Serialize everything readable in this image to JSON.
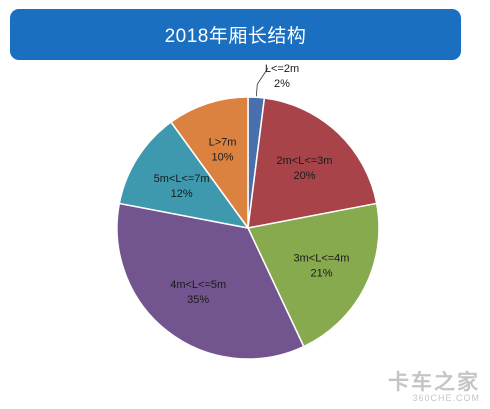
{
  "header": {
    "title": "2018年厢长结构"
  },
  "chart_data": {
    "type": "pie",
    "title": "2018年厢长结构",
    "slices": [
      {
        "label": "L<=2m",
        "pct_label": "2%",
        "value": 2,
        "color": "#4a6fad"
      },
      {
        "label": "2m<L<=3m",
        "pct_label": "20%",
        "value": 20,
        "color": "#a8434a"
      },
      {
        "label": "3m<L<=4m",
        "pct_label": "21%",
        "value": 21,
        "color": "#88aa4e"
      },
      {
        "label": "4m<L<=5m",
        "pct_label": "35%",
        "value": 35,
        "color": "#72558e"
      },
      {
        "label": "5m<L<=7m",
        "pct_label": "12%",
        "value": 12,
        "color": "#3f99ae"
      },
      {
        "label": "L>7m",
        "pct_label": "10%",
        "value": 10,
        "color": "#dc8240"
      }
    ]
  },
  "watermark": {
    "brand": "卡车之家",
    "url": "360CHE.COM"
  }
}
